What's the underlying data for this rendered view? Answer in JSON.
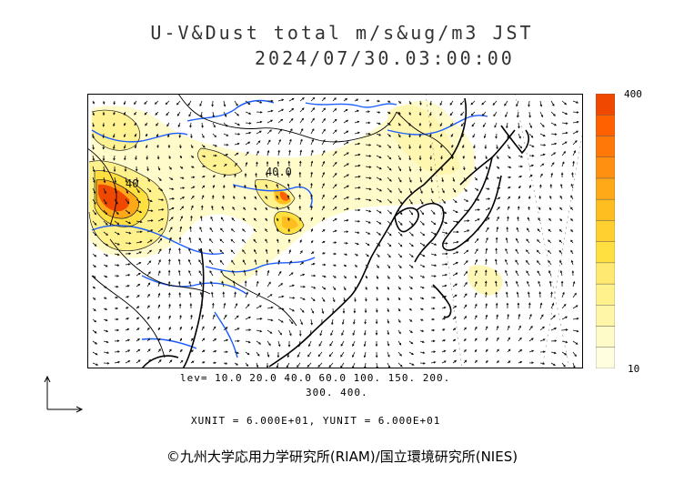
{
  "header": {
    "title": "U-V&Dust total m/s&ug/m3 JST",
    "timestamp": "2024/07/30.03:00:00"
  },
  "map": {
    "contour_labels": [
      "40.0",
      "40"
    ]
  },
  "legend": {
    "max_label": "400",
    "min_label": "10",
    "colors": [
      "#ffffe0",
      "#fffbc8",
      "#fff6a8",
      "#fff18c",
      "#ffe970",
      "#ffe040",
      "#ffd030",
      "#ffbe20",
      "#ffa818",
      "#ff9010",
      "#ff7808",
      "#ff6000",
      "#f04800"
    ]
  },
  "footer": {
    "levels_line1": "lev= 10.0 20.0 40.0 60.0 100. 150. 200.",
    "levels_line2": "300. 400.",
    "units": "XUNIT = 6.000E+01, YUNIT = 6.000E+01",
    "copyright": "©九州大学応用力学研究所(RIAM)/国立環境研究所(NIES)"
  }
}
